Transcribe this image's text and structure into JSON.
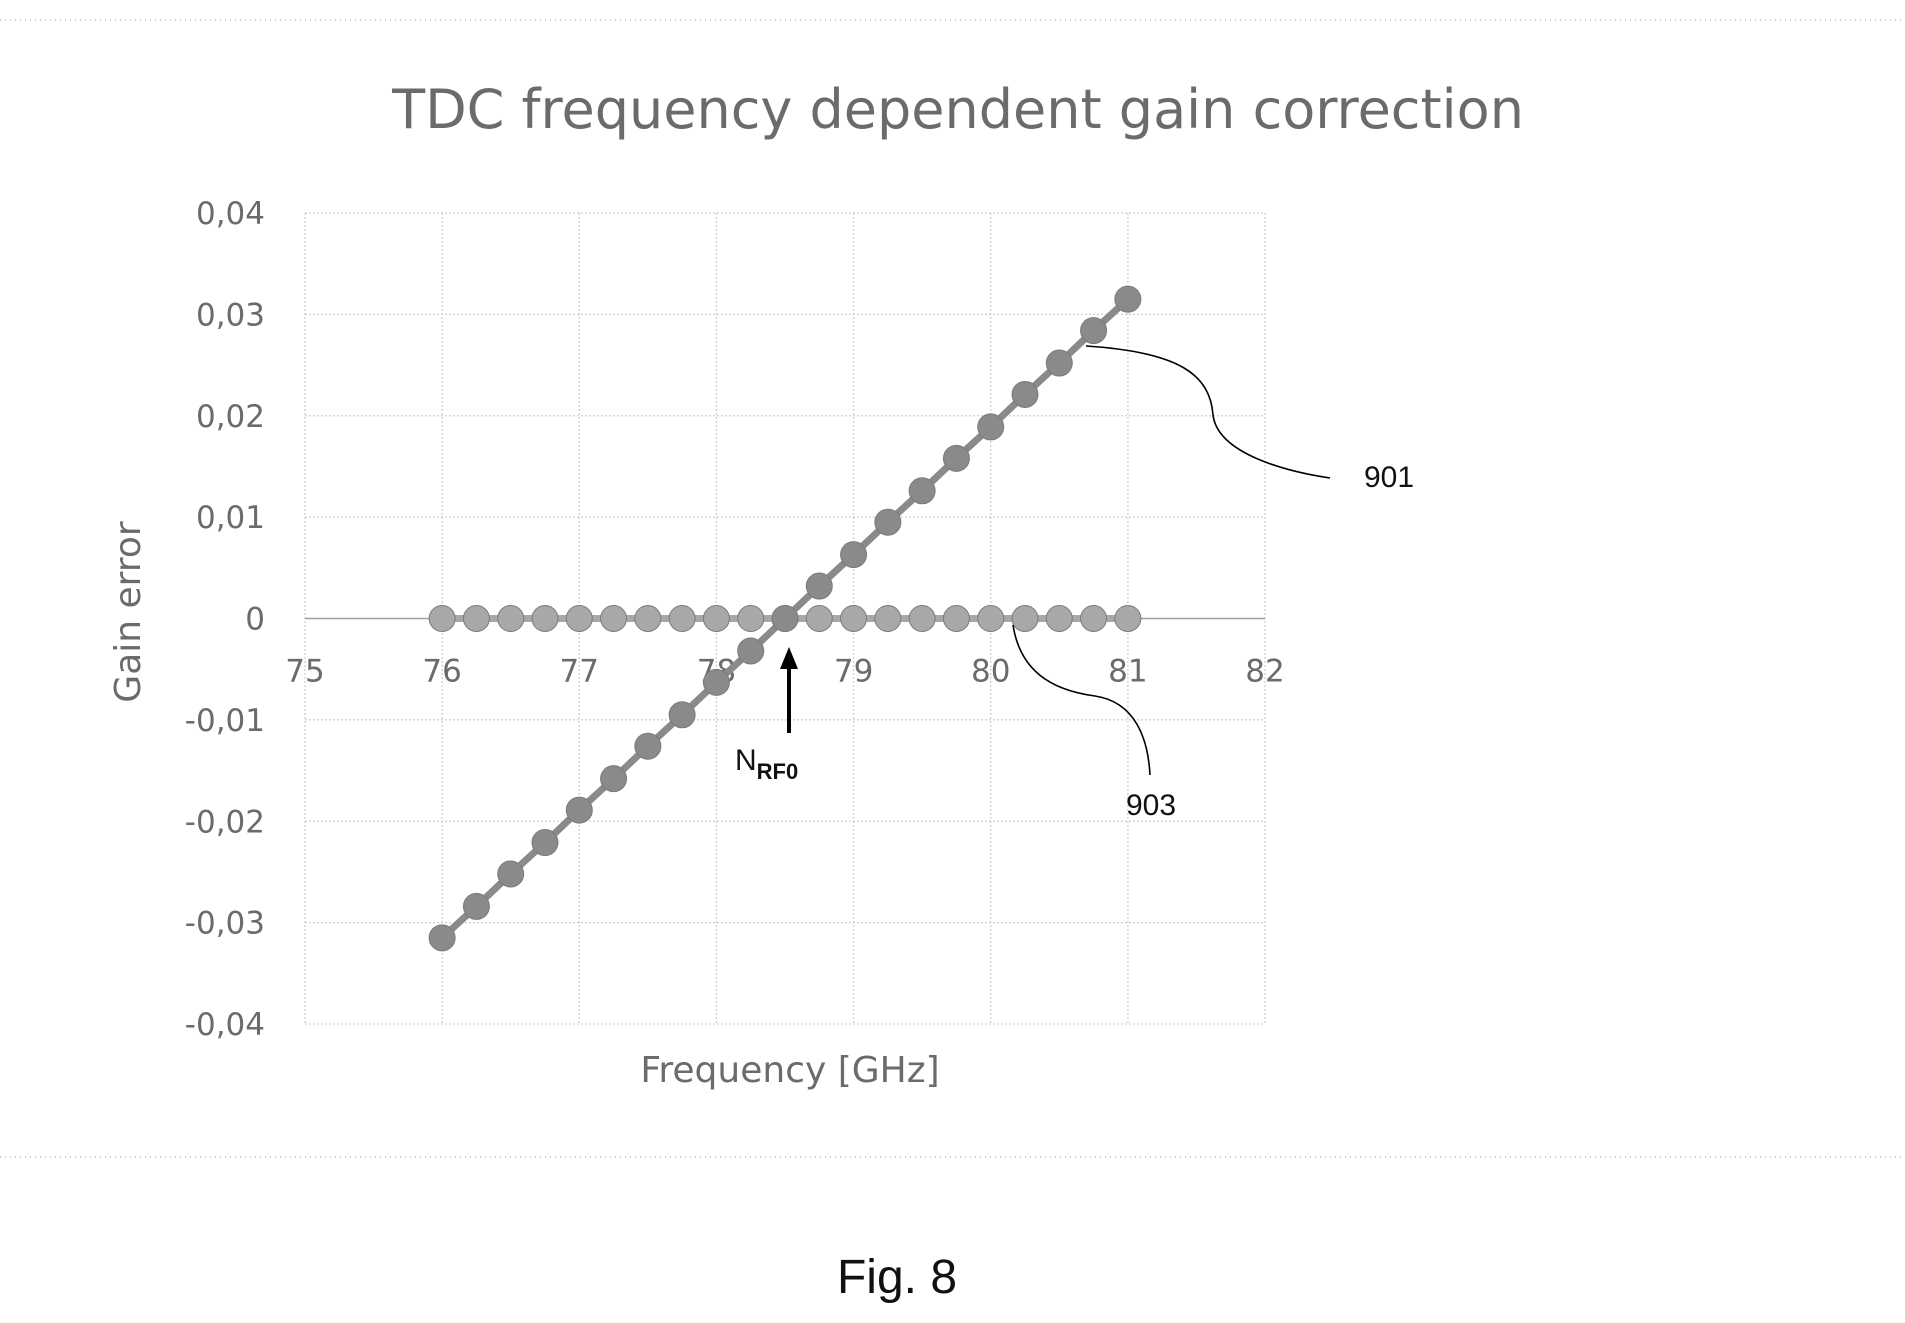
{
  "chart_data": {
    "type": "line",
    "title": "TDC frequency dependent gain correction",
    "xlabel": "Frequency [GHz]",
    "ylabel": "Gain error",
    "xlim": [
      75,
      82
    ],
    "ylim": [
      -0.04,
      0.04
    ],
    "x_ticks": [
      "75",
      "76",
      "77",
      "78",
      "79",
      "80",
      "81",
      "82"
    ],
    "y_ticks": [
      "0,04",
      "0,03",
      "0,02",
      "0,01",
      "0",
      "-0,01",
      "-0,02",
      "-0,03",
      "-0,04"
    ],
    "grid": true,
    "series": [
      {
        "label": "901",
        "color": "#8a8a8a",
        "x": [
          76,
          76.25,
          76.5,
          76.75,
          77,
          77.25,
          77.5,
          77.75,
          78,
          78.25,
          78.5,
          78.75,
          79,
          79.25,
          79.5,
          79.75,
          80,
          80.25,
          80.5,
          80.75,
          81
        ],
        "y": [
          -0.0315,
          -0.0284,
          -0.0252,
          -0.0221,
          -0.0189,
          -0.0158,
          -0.0126,
          -0.0095,
          -0.0063,
          -0.0032,
          0.0,
          0.0032,
          0.0063,
          0.0095,
          0.0126,
          0.0158,
          0.0189,
          0.0221,
          0.0252,
          0.0284,
          0.0315
        ]
      },
      {
        "label": "903",
        "color": "#a8a8a8",
        "x": [
          76,
          76.25,
          76.5,
          76.75,
          77,
          77.25,
          77.5,
          77.75,
          78,
          78.25,
          78.5,
          78.75,
          79,
          79.25,
          79.5,
          79.75,
          80,
          80.25,
          80.5,
          80.75,
          81
        ],
        "y": [
          0,
          0,
          0,
          0,
          0,
          0,
          0,
          0,
          0,
          0,
          0,
          0,
          0,
          0,
          0,
          0,
          0,
          0,
          0,
          0,
          0
        ]
      }
    ],
    "annotations": {
      "marker_label_main": "N",
      "marker_label_sub": "RF0",
      "marker_x": 78.5
    }
  },
  "caption": "Fig. 8"
}
